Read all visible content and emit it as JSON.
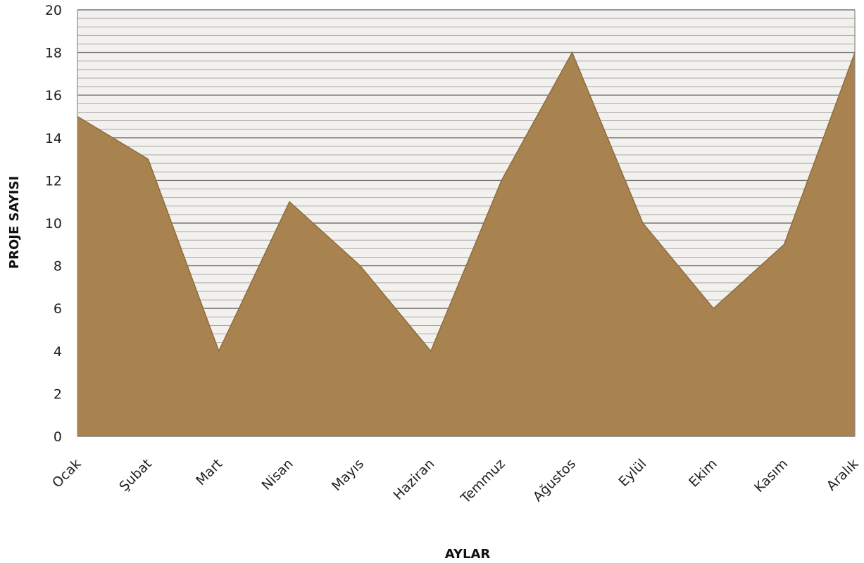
{
  "chart_data": {
    "type": "area",
    "categories": [
      "Ocak",
      "Şubat",
      "Mart",
      "Nisan",
      "Mayıs",
      "Haziran",
      "Temmuz",
      "Ağustos",
      "Eylül",
      "Ekim",
      "Kasım",
      "Aralık"
    ],
    "series": [
      {
        "values": [
          15,
          13,
          4,
          11,
          8,
          4,
          12,
          18,
          10,
          6,
          9,
          18
        ]
      }
    ],
    "xlabel": "AYLAR",
    "ylabel": "PROJE SAYISI",
    "ylim": [
      0,
      20
    ],
    "yticks": [
      0,
      2,
      4,
      6,
      8,
      10,
      12,
      14,
      16,
      18,
      20
    ],
    "grid": true,
    "legend": "none",
    "colors": {
      "area_fill": "#A8834F",
      "area_stroke": "#8E6C3D",
      "grid_major": "#777777",
      "grid_minor": "#A8A8A8",
      "plot_background": "#F3F1EE",
      "axis": "#888888"
    }
  }
}
